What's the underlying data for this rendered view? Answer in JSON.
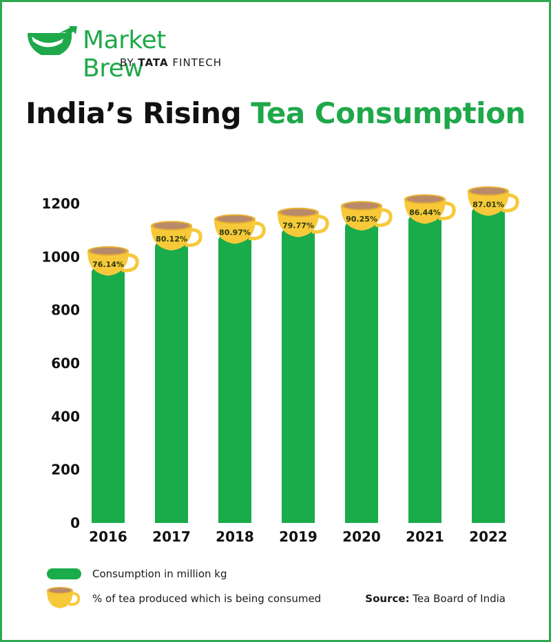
{
  "brand": {
    "name": "Market Brew",
    "by_prefix": "BY",
    "by_tata": "TATA",
    "by_suffix": "FINTECH"
  },
  "title": {
    "part1": "India’s Rising ",
    "part2": "Tea Consumption"
  },
  "colors": {
    "bar": "#1aab4a",
    "accent": "#1ea84a",
    "cup": "#f7c93a",
    "cup_rim": "#e8b130",
    "tea": "#b98a6a",
    "frame": "#2fa84f"
  },
  "chart_data": {
    "type": "bar",
    "title": "India’s Rising Tea Consumption",
    "categories": [
      "2016",
      "2017",
      "2018",
      "2019",
      "2020",
      "2021",
      "2022"
    ],
    "series": [
      {
        "name": "Consumption in million kg",
        "values": [
          960,
          1055,
          1080,
          1105,
          1130,
          1155,
          1185
        ]
      },
      {
        "name": "% of tea produced which is being consumed",
        "values": [
          76.14,
          80.12,
          80.97,
          79.77,
          90.25,
          86.44,
          87.01
        ],
        "labels": [
          "76.14%",
          "80.12%",
          "80.97%",
          "79.77%",
          "90.25%",
          "86.44%",
          "87.01%"
        ]
      }
    ],
    "yticks": [
      "0",
      "200",
      "400",
      "600",
      "800",
      "1000",
      "1200"
    ],
    "ylim": [
      0,
      1200
    ],
    "xlabel": "",
    "ylabel": ""
  },
  "legend": {
    "consumption": "Consumption in million kg",
    "percent": "% of tea produced which is being consumed"
  },
  "source": {
    "label": "Source:",
    "text": " Tea Board of India"
  }
}
